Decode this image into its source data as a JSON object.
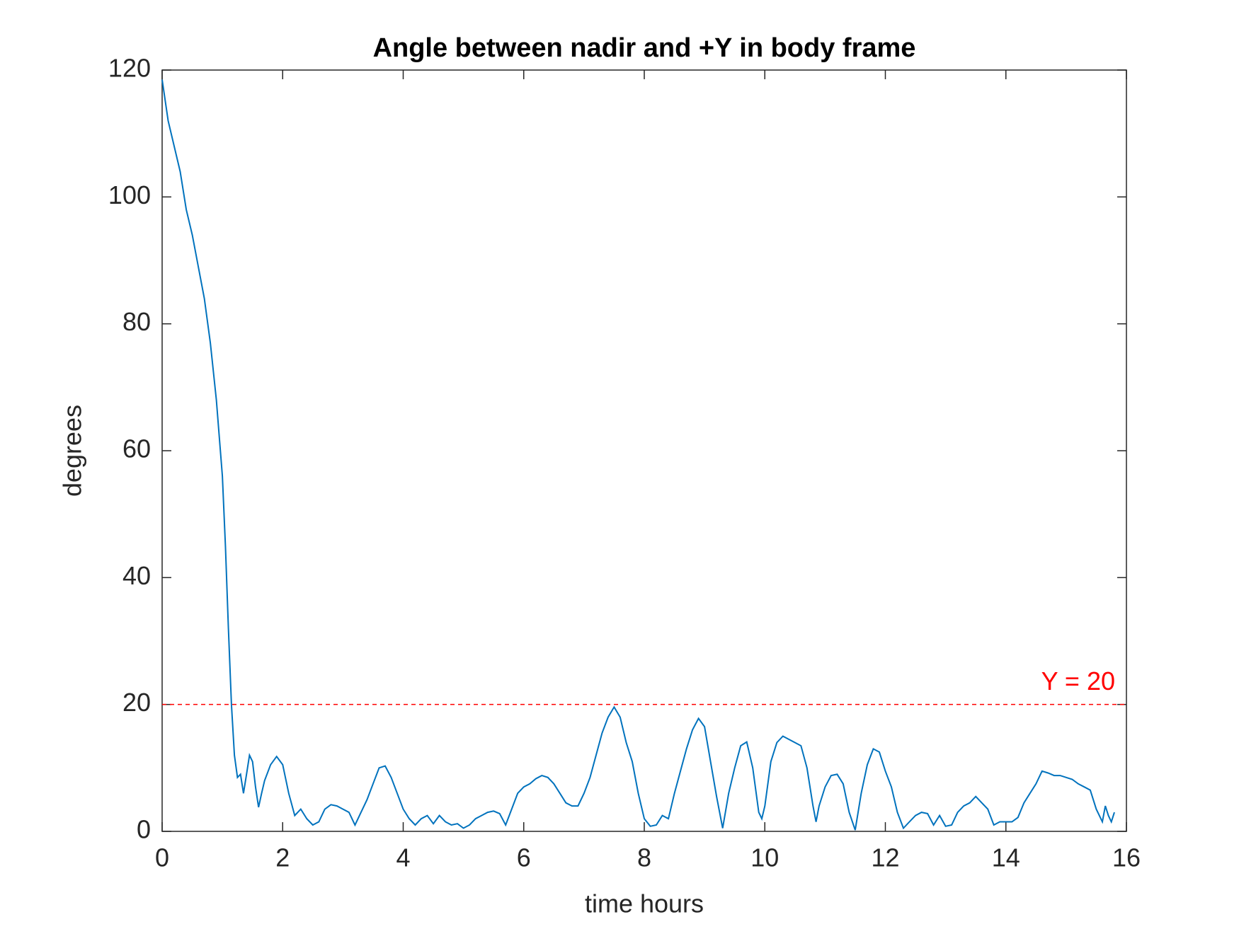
{
  "chart_data": {
    "type": "line",
    "title": "Angle between nadir and +Y in body frame",
    "xlabel": "time hours",
    "ylabel": "degrees",
    "xlim": [
      0,
      16
    ],
    "ylim": [
      0,
      120
    ],
    "xticks": [
      0,
      2,
      4,
      6,
      8,
      10,
      12,
      14,
      16
    ],
    "yticks": [
      0,
      20,
      40,
      60,
      80,
      100,
      120
    ],
    "hline": {
      "value": 20,
      "label": "Y = 20",
      "color": "#ff0000"
    },
    "series": [
      {
        "color": "#0072bd",
        "x": [
          0,
          0.1,
          0.2,
          0.3,
          0.4,
          0.5,
          0.6,
          0.7,
          0.8,
          0.9,
          1.0,
          1.05,
          1.1,
          1.15,
          1.2,
          1.25,
          1.3,
          1.35,
          1.4,
          1.45,
          1.5,
          1.55,
          1.6,
          1.65,
          1.7,
          1.8,
          1.9,
          2.0,
          2.1,
          2.2,
          2.3,
          2.4,
          2.5,
          2.6,
          2.7,
          2.8,
          2.9,
          3.0,
          3.1,
          3.2,
          3.3,
          3.4,
          3.5,
          3.6,
          3.7,
          3.8,
          3.9,
          4.0,
          4.1,
          4.2,
          4.3,
          4.4,
          4.5,
          4.6,
          4.7,
          4.8,
          4.9,
          5.0,
          5.1,
          5.2,
          5.3,
          5.4,
          5.5,
          5.6,
          5.7,
          5.8,
          5.9,
          6.0,
          6.1,
          6.2,
          6.3,
          6.4,
          6.5,
          6.6,
          6.7,
          6.8,
          6.9,
          7.0,
          7.1,
          7.2,
          7.3,
          7.4,
          7.5,
          7.6,
          7.7,
          7.8,
          7.9,
          8.0,
          8.1,
          8.2,
          8.3,
          8.4,
          8.5,
          8.6,
          8.7,
          8.8,
          8.9,
          9.0,
          9.1,
          9.2,
          9.3,
          9.4,
          9.5,
          9.6,
          9.7,
          9.8,
          9.9,
          9.95,
          10.0,
          10.1,
          10.2,
          10.3,
          10.4,
          10.5,
          10.6,
          10.7,
          10.8,
          10.85,
          10.9,
          11.0,
          11.1,
          11.2,
          11.3,
          11.4,
          11.5,
          11.6,
          11.7,
          11.8,
          11.9,
          12.0,
          12.1,
          12.2,
          12.3,
          12.4,
          12.5,
          12.6,
          12.7,
          12.8,
          12.9,
          13.0,
          13.1,
          13.2,
          13.3,
          13.4,
          13.5,
          13.6,
          13.7,
          13.8,
          13.9,
          14.0,
          14.1,
          14.2,
          14.3,
          14.4,
          14.5,
          14.6,
          14.7,
          14.8,
          14.9,
          15.0,
          15.1,
          15.2,
          15.3,
          15.4,
          15.5,
          15.6,
          15.65,
          15.7,
          15.75,
          15.8
        ],
        "values": [
          118.5,
          112,
          108,
          104,
          98,
          94,
          89,
          84,
          77,
          68,
          56,
          45,
          32,
          20,
          12,
          8.5,
          9,
          6,
          9,
          12,
          11,
          7,
          3.8,
          6,
          8,
          10.5,
          11.8,
          10.5,
          6,
          2.5,
          3.5,
          2,
          1,
          1.5,
          3.5,
          4.2,
          4,
          3.5,
          3,
          1,
          3,
          5,
          7.5,
          10,
          10.3,
          8.5,
          6,
          3.5,
          2,
          1,
          2,
          2.5,
          1.2,
          2.5,
          1.5,
          1,
          1.2,
          0.5,
          1,
          2,
          2.5,
          3,
          3.2,
          2.8,
          1,
          3.5,
          6,
          7,
          7.5,
          8.3,
          8.8,
          8.5,
          7.5,
          6,
          4.5,
          4,
          4,
          6,
          8.5,
          12,
          15.5,
          18,
          19.6,
          18,
          14,
          11,
          6,
          2,
          0.8,
          1,
          2.5,
          2,
          6,
          9.5,
          13,
          16,
          17.8,
          16.5,
          11,
          5.5,
          0.5,
          6,
          10,
          13.5,
          14.1,
          10,
          3,
          2,
          4,
          11,
          14,
          15,
          14.5,
          14,
          13.5,
          10,
          4,
          1.5,
          4,
          7,
          8.8,
          9,
          7.5,
          3,
          0.2,
          6,
          10.5,
          13,
          12.5,
          9.5,
          7,
          3,
          0.5,
          1.5,
          2.5,
          3,
          2.8,
          1,
          2.5,
          0.8,
          1,
          3,
          4,
          4.5,
          5.5,
          4.5,
          3.5,
          1,
          1.5,
          1.5,
          1.5,
          2.2,
          4.5,
          6,
          7.5,
          9.5,
          9.2,
          8.8,
          8.8,
          8.5,
          8.2,
          7.5,
          7,
          6.5,
          3.5,
          1.5,
          4,
          2.5,
          1.5,
          3
        ]
      }
    ]
  }
}
